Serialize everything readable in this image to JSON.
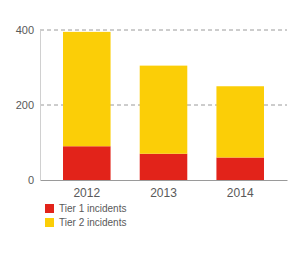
{
  "chart_data": {
    "type": "bar",
    "stacked": true,
    "grid": true,
    "legend": "bottom",
    "categories": [
      "2012",
      "2013",
      "2014"
    ],
    "series": [
      {
        "name": "Tier 1 incidents",
        "color": "#e2231a",
        "values": [
          90,
          70,
          60
        ]
      },
      {
        "name": "Tier 2 incidents",
        "color": "#fbce07",
        "values": [
          305,
          235,
          190
        ]
      }
    ],
    "ylim": [
      0,
      400
    ],
    "yticks": [
      0,
      200,
      400
    ]
  }
}
